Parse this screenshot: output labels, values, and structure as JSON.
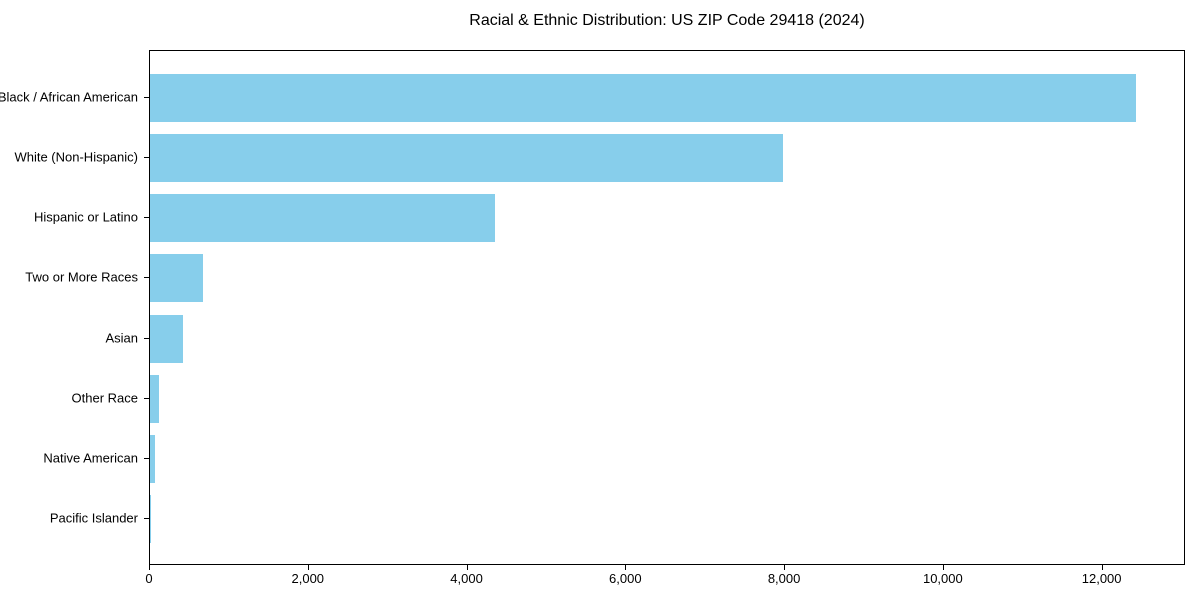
{
  "chart_data": {
    "type": "bar",
    "orientation": "horizontal",
    "title": "Racial & Ethnic Distribution: US ZIP Code 29418 (2024)",
    "categories": [
      "Black / African American",
      "White (Non-Hispanic)",
      "Hispanic or Latino",
      "Two or More Races",
      "Asian",
      "Other Race",
      "Native American",
      "Pacific Islander"
    ],
    "values": [
      12440,
      7990,
      4350,
      670,
      415,
      110,
      60,
      10
    ],
    "xlabel": "",
    "ylabel": "",
    "xlim": [
      0,
      13050
    ],
    "x_ticks": [
      0,
      2000,
      4000,
      6000,
      8000,
      10000,
      12000
    ],
    "x_tick_labels": [
      "0",
      "2,000",
      "4,000",
      "6,000",
      "8,000",
      "10,000",
      "12,000"
    ],
    "bar_color": "#87CEEB",
    "frame_color": "#000000",
    "background_color": "#ffffff",
    "grid": false,
    "legend": "none"
  }
}
